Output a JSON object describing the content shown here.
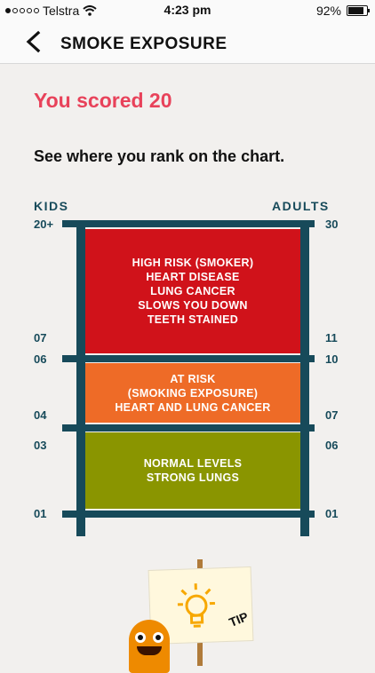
{
  "status_bar": {
    "carrier": "Telstra",
    "time": "4:23 pm",
    "battery": "92%",
    "battery_level": 0.92
  },
  "nav": {
    "title": "SMOKE EXPOSURE"
  },
  "result": {
    "score_text": "You scored 20",
    "subtitle": "See where you rank on the chart."
  },
  "chart": {
    "left_label": "KIDS",
    "right_label": "ADULTS",
    "left_ticks": [
      "20+",
      "07",
      "06",
      "04",
      "03",
      "01"
    ],
    "right_ticks": [
      "30",
      "11",
      "10",
      "07",
      "06",
      "01"
    ],
    "bands": [
      {
        "lines": [
          "HIGH RISK (SMOKER)",
          "HEART DISEASE",
          "LUNG CANCER",
          "SLOWS YOU DOWN",
          "TEETH STAINED"
        ],
        "color": "#d0121a"
      },
      {
        "lines": [
          "AT RISK",
          "(SMOKING EXPOSURE)",
          "HEART AND LUNG CANCER"
        ],
        "color": "#ee6b27"
      },
      {
        "lines": [
          "NORMAL LEVELS",
          "STRONG LUNGS"
        ],
        "color": "#8a9500"
      }
    ]
  },
  "tip": {
    "label": "TIP"
  }
}
